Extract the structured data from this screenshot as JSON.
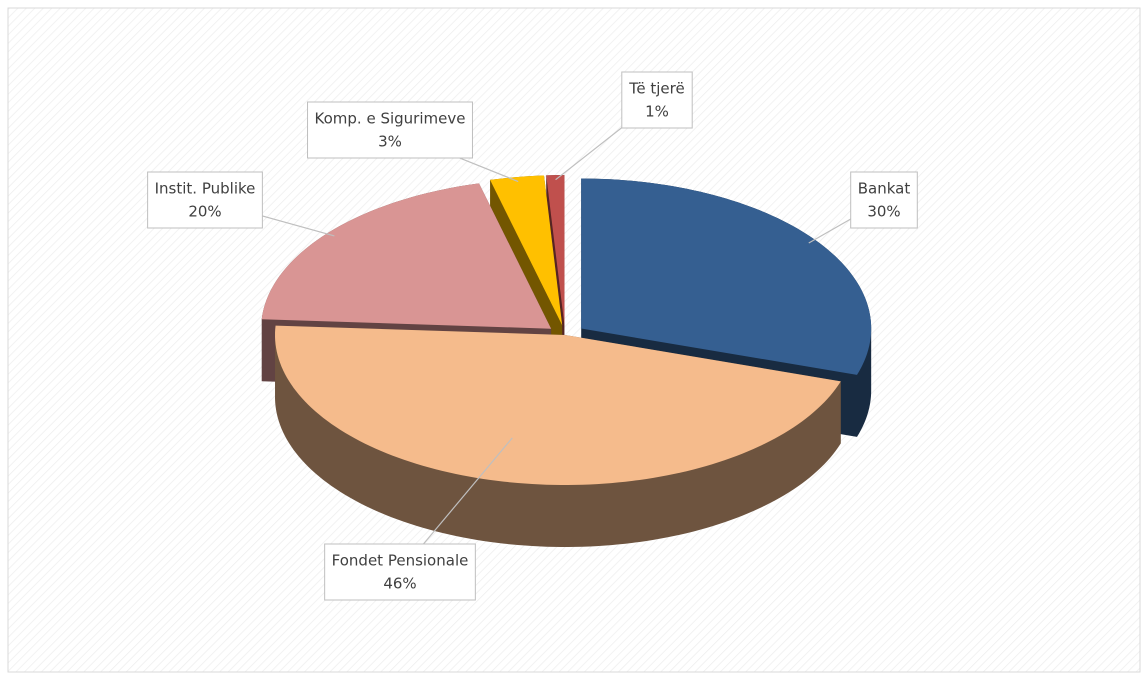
{
  "chart_data": {
    "type": "pie",
    "categories": [
      "Bankat",
      "Fondet Pensionale",
      "Instit. Publike",
      "Komp. e Sigurimeve",
      "Të tjerë"
    ],
    "values": [
      30,
      46,
      20,
      3,
      1
    ],
    "value_labels": [
      "30%",
      "46%",
      "20%",
      "3%",
      "1%"
    ],
    "colors": [
      "#355f91",
      "#f5bb8c",
      "#d99594",
      "#ffc000",
      "#c0504d"
    ]
  }
}
